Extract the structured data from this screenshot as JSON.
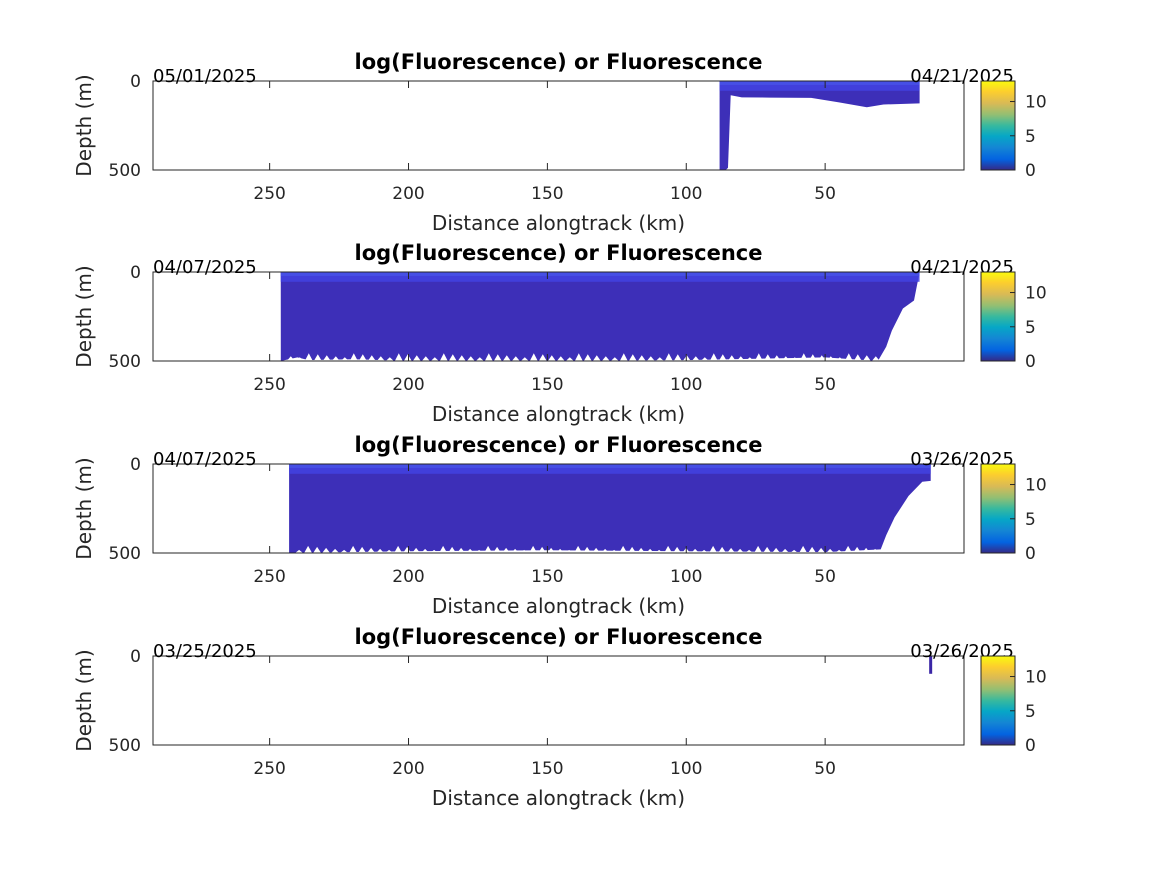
{
  "chart_data": [
    {
      "type": "heatmap",
      "title": "log(Fluorescence) or Fluorescence",
      "xlabel": "Distance alongtrack (km)",
      "ylabel": "Depth (m)",
      "x_reversed": true,
      "xlim": [
        292,
        0
      ],
      "ylim": [
        0,
        500
      ],
      "xticks": [
        250,
        200,
        150,
        100,
        50
      ],
      "yticks": [
        0,
        500
      ],
      "start_date": "05/01/2025",
      "end_date": "04/21/2025",
      "colorbar": {
        "range": [
          0,
          13
        ],
        "ticks": [
          0,
          5,
          10
        ],
        "colormap": "parula"
      },
      "surface_layer_m": [
        0,
        55
      ],
      "bottom_boundary": [
        [
          88,
          500
        ],
        [
          85,
          500
        ],
        [
          84,
          80
        ],
        [
          80,
          92
        ],
        [
          70,
          93
        ],
        [
          55,
          95
        ],
        [
          45,
          120
        ],
        [
          35,
          148
        ],
        [
          29,
          132
        ],
        [
          16,
          126
        ],
        [
          16,
          0
        ]
      ],
      "grid": false
    },
    {
      "type": "heatmap",
      "title": "log(Fluorescence) or Fluorescence",
      "xlabel": "Distance alongtrack (km)",
      "ylabel": "Depth (m)",
      "x_reversed": true,
      "xlim": [
        292,
        0
      ],
      "ylim": [
        0,
        500
      ],
      "xticks": [
        250,
        200,
        150,
        100,
        50
      ],
      "yticks": [
        0,
        500
      ],
      "start_date": "04/07/2025",
      "end_date": "04/21/2025",
      "colorbar": {
        "range": [
          0,
          13
        ],
        "ticks": [
          0,
          5,
          10
        ],
        "colormap": "parula"
      },
      "surface_layer_m": [
        0,
        55
      ],
      "bottom_boundary": [
        [
          246,
          500
        ],
        [
          240,
          480
        ],
        [
          236,
          495
        ],
        [
          220,
          490
        ],
        [
          200,
          500
        ],
        [
          150,
          500
        ],
        [
          100,
          495
        ],
        [
          50,
          480
        ],
        [
          31,
          500
        ],
        [
          28,
          420
        ],
        [
          26,
          330
        ],
        [
          22,
          205
        ],
        [
          18,
          160
        ],
        [
          16,
          0
        ]
      ],
      "grid": false
    },
    {
      "type": "heatmap",
      "title": "log(Fluorescence) or Fluorescence",
      "xlabel": "Distance alongtrack (km)",
      "ylabel": "Depth (m)",
      "x_reversed": true,
      "xlim": [
        292,
        0
      ],
      "ylim": [
        0,
        500
      ],
      "xticks": [
        250,
        200,
        150,
        100,
        50
      ],
      "yticks": [
        0,
        500
      ],
      "start_date": "04/07/2025",
      "end_date": "03/26/2025",
      "colorbar": {
        "range": [
          0,
          13
        ],
        "ticks": [
          0,
          5,
          10
        ],
        "colormap": "parula"
      },
      "surface_layer_m": [
        0,
        55
      ],
      "bottom_boundary": [
        [
          243,
          500
        ],
        [
          200,
          490
        ],
        [
          150,
          485
        ],
        [
          100,
          490
        ],
        [
          50,
          495
        ],
        [
          30,
          480
        ],
        [
          28,
          400
        ],
        [
          25,
          300
        ],
        [
          20,
          180
        ],
        [
          15,
          100
        ],
        [
          12,
          95
        ],
        [
          12,
          0
        ]
      ],
      "grid": false
    },
    {
      "type": "heatmap",
      "title": "log(Fluorescence) or Fluorescence",
      "xlabel": "Distance alongtrack (km)",
      "ylabel": "Depth (m)",
      "x_reversed": true,
      "xlim": [
        292,
        0
      ],
      "ylim": [
        0,
        500
      ],
      "xticks": [
        250,
        200,
        150,
        100,
        50
      ],
      "yticks": [
        0,
        500
      ],
      "start_date": "03/25/2025",
      "end_date": "03/26/2025",
      "colorbar": {
        "range": [
          0,
          13
        ],
        "ticks": [
          0,
          5,
          10
        ],
        "colormap": "parula"
      },
      "data_segments": [
        {
          "x": 12,
          "depth": [
            0,
            100
          ]
        }
      ],
      "grid": false
    }
  ]
}
